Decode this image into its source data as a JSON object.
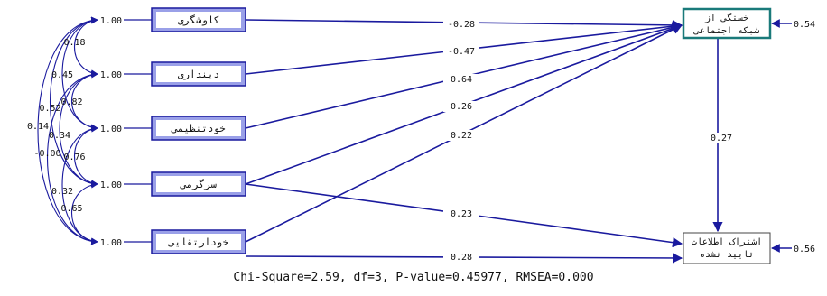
{
  "colors": {
    "line": "#1a1a9e",
    "box_fill": "#9aa0e8",
    "box_border": "#1a1a9e",
    "endo_border": "#1a7a7a",
    "text": "#111111"
  },
  "exogenous": [
    {
      "id": "kavoshgari",
      "label": "کاوشگری",
      "variance": "1.00"
    },
    {
      "id": "dindari",
      "label": "دینداری",
      "variance": "1.00"
    },
    {
      "id": "khodtanzimi",
      "label": "خودتنظیمی",
      "variance": "1.00"
    },
    {
      "id": "sargarmi",
      "label": "سرگرمی",
      "variance": "1.00"
    },
    {
      "id": "khodertaghaei",
      "label": "خودارتقایی",
      "variance": "1.00"
    }
  ],
  "endogenous": [
    {
      "id": "fatigue",
      "label_lines": [
        "خستگی از",
        "شبکه اجتماعی"
      ],
      "error": "0.54"
    },
    {
      "id": "sharing",
      "label_lines": [
        "اشتراک اطلاعات",
        "تایید نشده"
      ],
      "error": "0.56"
    }
  ],
  "paths": [
    {
      "from": "kavoshgari",
      "to": "fatigue",
      "label": "-0.28"
    },
    {
      "from": "dindari",
      "to": "fatigue",
      "label": "-0.47"
    },
    {
      "from": "khodtanzimi",
      "to": "fatigue",
      "label": "0.64"
    },
    {
      "from": "sargarmi",
      "to": "fatigue",
      "label": "0.26"
    },
    {
      "from": "khodertaghaei",
      "to": "fatigue",
      "label": "0.22"
    },
    {
      "from": "fatigue",
      "to": "sharing",
      "label": "0.27"
    },
    {
      "from": "sargarmi",
      "to": "sharing",
      "label": "0.23"
    },
    {
      "from": "khodertaghaei",
      "to": "sharing",
      "label": "0.28"
    }
  ],
  "covariances": [
    {
      "a": 0,
      "b": 1,
      "label": "0.18"
    },
    {
      "a": 0,
      "b": 2,
      "label": "0.45"
    },
    {
      "a": 0,
      "b": 3,
      "label": "0.52"
    },
    {
      "a": 0,
      "b": 4,
      "label": "0.14"
    },
    {
      "a": 1,
      "b": 2,
      "label": "0.82"
    },
    {
      "a": 1,
      "b": 3,
      "label": "0.34"
    },
    {
      "a": 1,
      "b": 4,
      "label": "-0.00"
    },
    {
      "a": 2,
      "b": 3,
      "label": "0.76"
    },
    {
      "a": 2,
      "b": 4,
      "label": "0.32"
    },
    {
      "a": 3,
      "b": 4,
      "label": "0.65"
    }
  ],
  "fit_statistics": "Chi-Square=2.59, df=3, P-value=0.45977, RMSEA=0.000"
}
